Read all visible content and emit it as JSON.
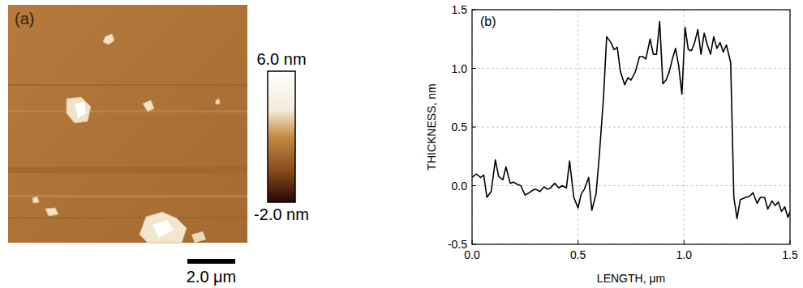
{
  "chart_data": [
    {
      "type": "image",
      "title": "(a)",
      "xlim": [
        0,
        10
      ],
      "scale_bar": {
        "value": 2.0,
        "label": "2.0 μm"
      },
      "colorbar": {
        "range": [
          -2.0,
          6.0
        ],
        "ticks": [
          {
            "value": 6.0,
            "label": "6.0 nm"
          },
          {
            "value": -2.0,
            "label": "-2.0 nm"
          }
        ]
      }
    },
    {
      "type": "line",
      "title": "(b)",
      "x_label": "LENGTH, μm",
      "y_label": "THICKNESS, nm",
      "x": [
        0.0,
        0.02,
        0.04,
        0.055,
        0.07,
        0.09,
        0.11,
        0.125,
        0.145,
        0.16,
        0.18,
        0.195,
        0.215,
        0.23,
        0.25,
        0.27,
        0.285,
        0.3,
        0.32,
        0.34,
        0.355,
        0.37,
        0.39,
        0.41,
        0.425,
        0.445,
        0.46,
        0.48,
        0.5,
        0.515,
        0.53,
        0.55,
        0.565,
        0.585,
        0.6,
        0.62,
        0.635,
        0.655,
        0.67,
        0.685,
        0.7,
        0.72,
        0.735,
        0.75,
        0.77,
        0.79,
        0.805,
        0.82,
        0.84,
        0.855,
        0.87,
        0.885,
        0.9,
        0.915,
        0.93,
        0.945,
        0.96,
        0.975,
        0.99,
        1.005,
        1.02,
        1.035,
        1.05,
        1.065,
        1.08,
        1.095,
        1.11,
        1.125,
        1.14,
        1.155,
        1.17,
        1.185,
        1.2,
        1.22,
        1.235,
        1.25,
        1.265,
        1.29,
        1.31,
        1.325,
        1.345,
        1.36,
        1.38,
        1.395,
        1.415,
        1.43,
        1.445,
        1.46,
        1.475,
        1.49,
        1.5
      ],
      "values": [
        0.07,
        0.1,
        0.07,
        0.09,
        -0.1,
        -0.05,
        0.22,
        0.08,
        0.05,
        0.16,
        0.02,
        0.03,
        0.01,
        0.0,
        -0.08,
        -0.06,
        -0.04,
        -0.03,
        -0.05,
        -0.01,
        -0.03,
        -0.02,
        0.02,
        -0.02,
        0.0,
        -0.02,
        0.21,
        -0.1,
        -0.19,
        -0.07,
        -0.03,
        0.07,
        -0.21,
        -0.07,
        0.25,
        0.75,
        1.27,
        1.22,
        1.16,
        1.18,
        0.97,
        0.86,
        0.92,
        0.9,
        0.97,
        1.1,
        1.1,
        1.08,
        1.25,
        1.12,
        1.12,
        1.4,
        0.87,
        0.9,
        0.97,
        1.08,
        1.17,
        1.02,
        0.78,
        1.35,
        1.16,
        1.15,
        1.22,
        1.33,
        1.12,
        1.3,
        1.2,
        1.12,
        1.27,
        1.17,
        1.22,
        1.14,
        1.2,
        1.05,
        -0.1,
        -0.28,
        -0.12,
        -0.1,
        -0.09,
        -0.06,
        -0.15,
        -0.1,
        -0.1,
        -0.2,
        -0.13,
        -0.17,
        -0.14,
        -0.22,
        -0.18,
        -0.27,
        -0.22
      ],
      "color": "#000000",
      "grid": true,
      "xlim": [
        0,
        1.5
      ],
      "ylim": [
        -0.5,
        1.5
      ],
      "xticks": [
        {
          "value": 0,
          "label": "0.0"
        },
        0.5,
        {
          "value": 1.0,
          "label": "1.0"
        },
        1.5
      ],
      "yticks": [
        -0.5,
        {
          "value": 0,
          "label": "0.0"
        },
        0.5,
        {
          "value": 1.0,
          "label": "1.0"
        },
        1.5
      ]
    }
  ]
}
